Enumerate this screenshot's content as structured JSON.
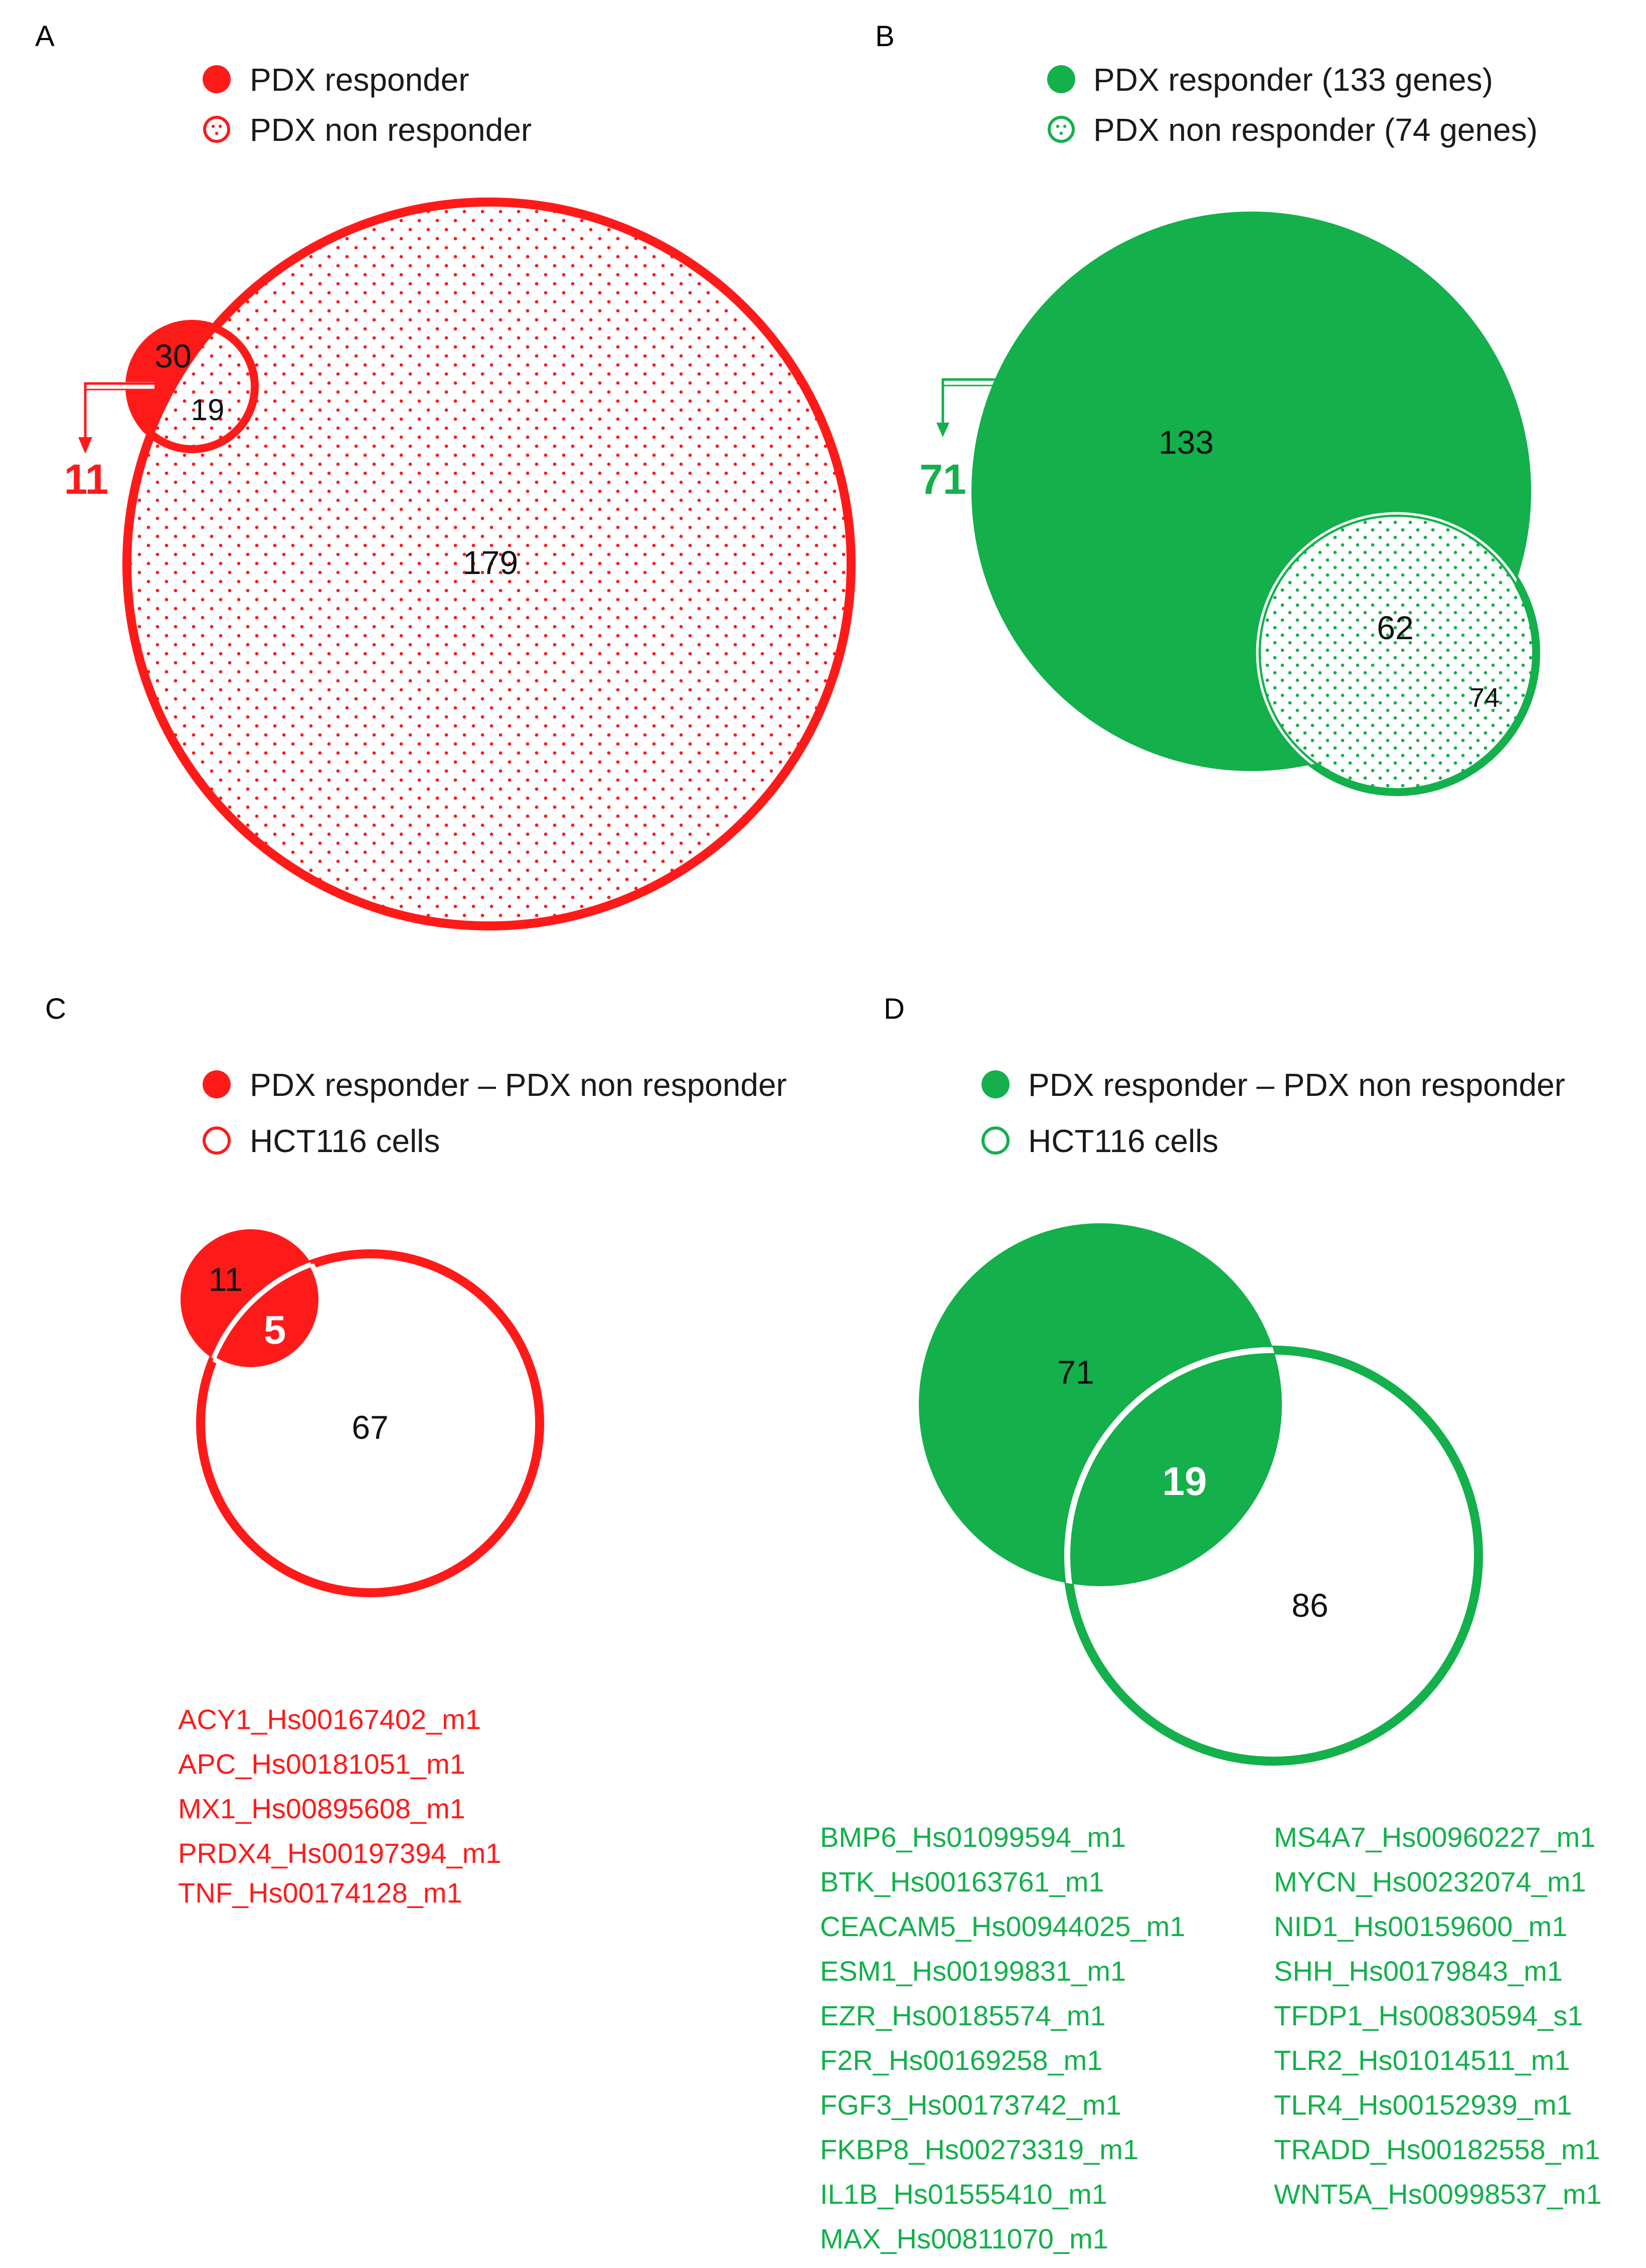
{
  "colors": {
    "red": "#ff1a1a",
    "green": "#13b04b",
    "text": "#111111"
  },
  "panel_a": {
    "letter": "A",
    "legend": [
      {
        "label": "PDX responder",
        "icon": "filled-circle-icon"
      },
      {
        "label": "PDX non responder",
        "icon": "dotted-circle-icon"
      }
    ],
    "responder_only": "30",
    "overlap": "19",
    "non_responder": "179",
    "callout": "11"
  },
  "panel_b": {
    "letter": "B",
    "legend": [
      {
        "label": "PDX responder (133 genes)",
        "icon": "filled-circle-icon"
      },
      {
        "label": "PDX non responder (74 genes)",
        "icon": "dotted-circle-icon"
      }
    ],
    "responder": "133",
    "overlap": "62",
    "non_responder": "74",
    "callout": "71"
  },
  "panel_c": {
    "letter": "C",
    "legend": [
      {
        "label": "PDX responder – PDX non responder",
        "icon": "filled-circle-icon"
      },
      {
        "label": "HCT116 cells",
        "icon": "open-circle-icon"
      }
    ],
    "left_only": "11",
    "overlap": "5",
    "right_only": "67",
    "genes": [
      "ACY1_Hs00167402_m1",
      "APC_Hs00181051_m1",
      "MX1_Hs00895608_m1",
      "PRDX4_Hs00197394_m1",
      "TNF_Hs00174128_m1"
    ]
  },
  "panel_d": {
    "letter": "D",
    "legend": [
      {
        "label": "PDX responder – PDX non responder",
        "icon": "filled-circle-icon"
      },
      {
        "label": "HCT116 cells",
        "icon": "open-circle-icon"
      }
    ],
    "left_only": "71",
    "overlap": "19",
    "right_only": "86",
    "genes_col1": [
      "BMP6_Hs01099594_m1",
      "BTK_Hs00163761_m1",
      "CEACAM5_Hs00944025_m1",
      "ESM1_Hs00199831_m1",
      "EZR_Hs00185574_m1",
      "F2R_Hs00169258_m1",
      "FGF3_Hs00173742_m1",
      "FKBP8_Hs00273319_m1",
      "IL1B_Hs01555410_m1",
      "MAX_Hs00811070_m1"
    ],
    "genes_col2": [
      "MS4A7_Hs00960227_m1",
      "MYCN_Hs00232074_m1",
      "NID1_Hs00159600_m1",
      "SHH_Hs00179843_m1",
      "TFDP1_Hs00830594_s1",
      "TLR2_Hs01014511_m1",
      "TLR4_Hs00152939_m1",
      "TRADD_Hs00182558_m1",
      "WNT5A_Hs00998537_m1"
    ]
  }
}
